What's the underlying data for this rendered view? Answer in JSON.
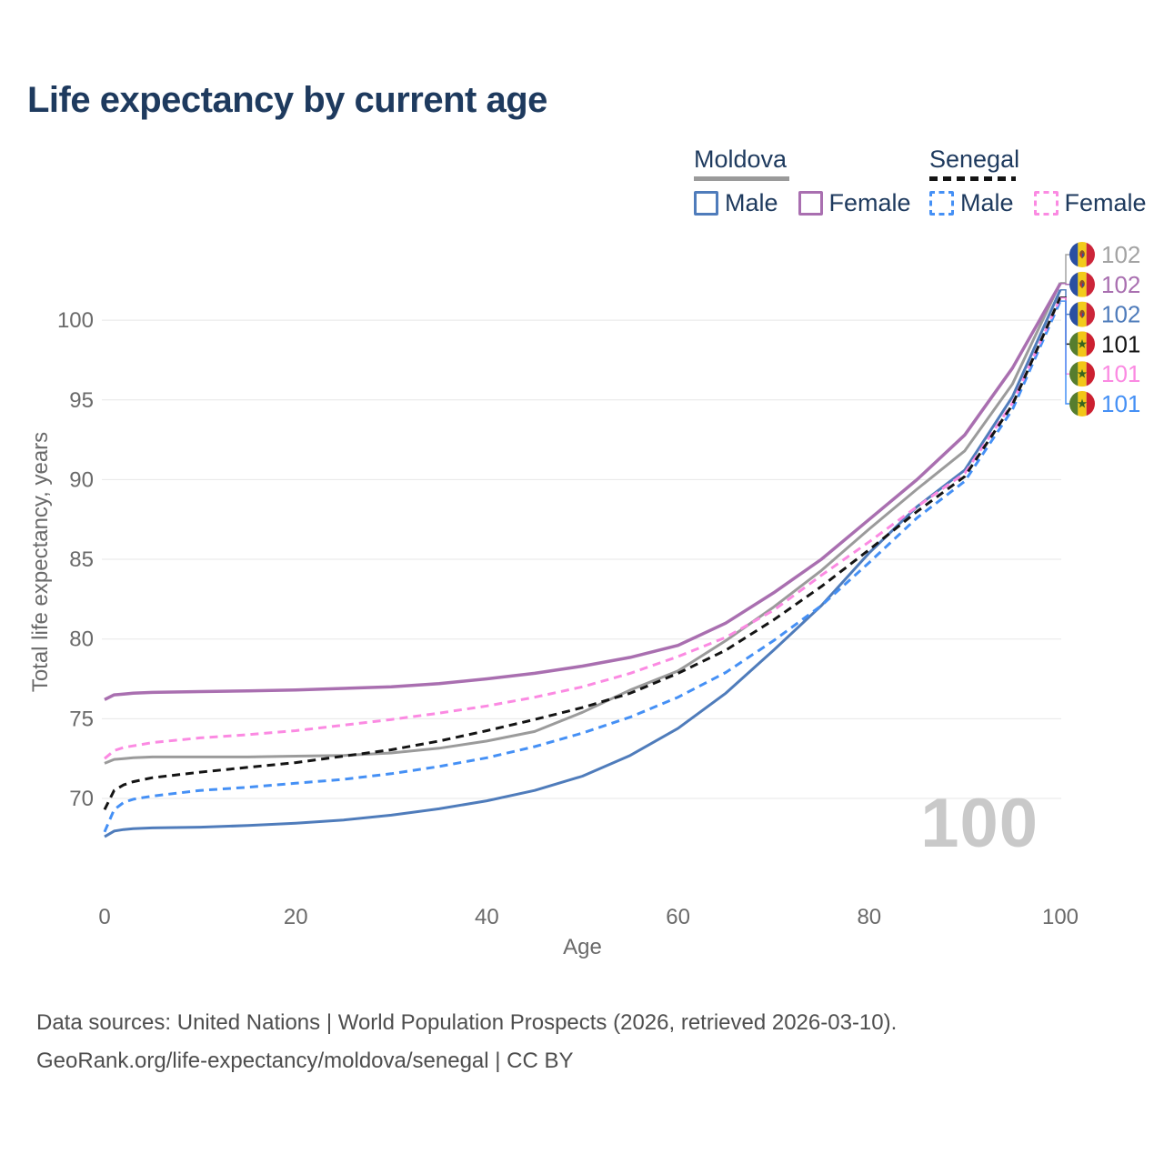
{
  "title": "Life expectancy by current age",
  "legend": {
    "groups": [
      {
        "label": "Moldova",
        "line_style": "solid",
        "line_color": "#9a9a9a",
        "items": [
          {
            "label": "Male",
            "color": "#4f7cbb",
            "dashed": false
          },
          {
            "label": "Female",
            "color": "#a96fb0",
            "dashed": false
          }
        ]
      },
      {
        "label": "Senegal",
        "line_style": "dashed",
        "line_color": "#141414",
        "items": [
          {
            "label": "Male",
            "color": "#4590f5",
            "dashed": true
          },
          {
            "label": "Female",
            "color": "#fb8ae2",
            "dashed": true
          }
        ]
      }
    ]
  },
  "axes": {
    "y_title": "Total life expectancy, years",
    "x_title": "Age"
  },
  "watermark": "100",
  "footer": {
    "line1": "Data sources: United Nations | World Population Prospects (2026, retrieved 2026-03-10).",
    "line2": "GeoRank.org/life-expectancy/moldova/senegal | CC BY"
  },
  "chart_data": {
    "type": "line",
    "title": "Life expectancy by current age",
    "xlabel": "Age",
    "ylabel": "Total life expectancy, years",
    "x_ticks": [
      0,
      20,
      40,
      60,
      80,
      100
    ],
    "y_ticks": [
      70,
      75,
      80,
      85,
      90,
      95,
      100
    ],
    "xlim": [
      0,
      100
    ],
    "ylim_displayed": [
      67,
      103
    ],
    "grid": "horizontal",
    "legend_position": "top-right",
    "hover_age_indicator": "100",
    "ages": [
      0,
      1,
      2,
      3,
      5,
      10,
      15,
      20,
      25,
      30,
      35,
      40,
      45,
      50,
      55,
      60,
      65,
      70,
      75,
      80,
      85,
      90,
      95,
      100
    ],
    "series": [
      {
        "id": "moldova-total",
        "name": "Moldova (total)",
        "country": "Moldova",
        "sex": "Total",
        "flag": "moldova",
        "color": "#9b9b9b",
        "label_color": "#a3a3a3",
        "dashed": false,
        "width": 3,
        "end_label": "102",
        "values": [
          72.2,
          72.45,
          72.5,
          72.55,
          72.6,
          72.6,
          72.6,
          72.65,
          72.7,
          72.85,
          73.15,
          73.6,
          74.2,
          75.4,
          76.8,
          78.0,
          79.9,
          82.0,
          84.3,
          86.9,
          89.4,
          91.8,
          96.0,
          102.35
        ]
      },
      {
        "id": "moldova-female",
        "name": "Moldova Female",
        "country": "Moldova",
        "sex": "Female",
        "flag": "moldova",
        "color": "#a96fb0",
        "label_color": "#a96fb0",
        "dashed": false,
        "width": 3.5,
        "end_label": "102",
        "values": [
          76.2,
          76.5,
          76.55,
          76.6,
          76.65,
          76.7,
          76.75,
          76.8,
          76.9,
          77.0,
          77.2,
          77.5,
          77.85,
          78.3,
          78.85,
          79.6,
          81.0,
          82.9,
          85.0,
          87.5,
          90.0,
          92.8,
          97.0,
          102.3
        ]
      },
      {
        "id": "moldova-male",
        "name": "Moldova Male",
        "country": "Moldova",
        "sex": "Male",
        "flag": "moldova",
        "color": "#4f7cbb",
        "label_color": "#4f7cbb",
        "dashed": false,
        "width": 3,
        "end_label": "102",
        "values": [
          67.6,
          67.95,
          68.05,
          68.1,
          68.15,
          68.2,
          68.3,
          68.45,
          68.65,
          68.95,
          69.35,
          69.85,
          70.5,
          71.4,
          72.7,
          74.4,
          76.6,
          79.3,
          82.1,
          85.4,
          88.3,
          90.6,
          95.2,
          101.9
        ]
      },
      {
        "id": "senegal-total",
        "name": "Senegal (total)",
        "country": "Senegal",
        "sex": "Total",
        "flag": "senegal",
        "color": "#141414",
        "label_color": "#141414",
        "dashed": true,
        "width": 3,
        "end_label": "101",
        "values": [
          69.3,
          70.5,
          70.85,
          71.05,
          71.3,
          71.65,
          71.95,
          72.25,
          72.65,
          73.05,
          73.6,
          74.25,
          74.95,
          75.7,
          76.6,
          77.85,
          79.3,
          81.2,
          83.3,
          85.6,
          88.0,
          90.2,
          94.7,
          101.45
        ]
      },
      {
        "id": "senegal-female",
        "name": "Senegal Female",
        "country": "Senegal",
        "sex": "Female",
        "flag": "senegal",
        "color": "#fb8ae2",
        "label_color": "#fb8ae2",
        "dashed": true,
        "width": 3,
        "end_label": "101",
        "values": [
          72.5,
          73.0,
          73.2,
          73.3,
          73.5,
          73.8,
          74.0,
          74.25,
          74.6,
          74.95,
          75.35,
          75.8,
          76.35,
          77.0,
          77.85,
          78.9,
          80.1,
          81.8,
          84.0,
          86.1,
          88.3,
          90.4,
          94.8,
          101.4
        ]
      },
      {
        "id": "senegal-male",
        "name": "Senegal Male",
        "country": "Senegal",
        "sex": "Male",
        "flag": "senegal",
        "color": "#4590f5",
        "label_color": "#4590f5",
        "dashed": true,
        "width": 3,
        "end_label": "101",
        "values": [
          67.9,
          69.3,
          69.75,
          69.95,
          70.15,
          70.5,
          70.7,
          70.95,
          71.2,
          71.55,
          72.0,
          72.55,
          73.25,
          74.1,
          75.1,
          76.35,
          77.9,
          79.9,
          82.1,
          84.8,
          87.6,
          89.9,
          94.4,
          101.2
        ]
      }
    ]
  }
}
